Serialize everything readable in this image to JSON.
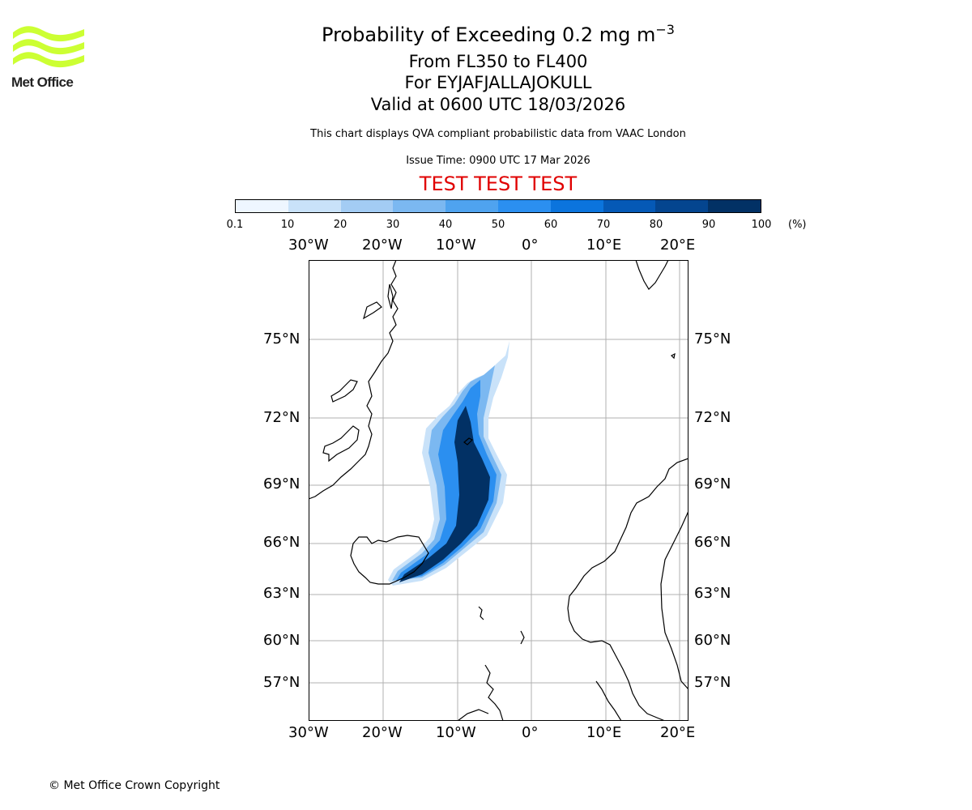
{
  "header": {
    "title": "Probability of Exceeding 0.2 mg m",
    "title_sup": "−3",
    "levels": "From FL350 to FL400",
    "volcano": "For EYJAFJALLAJOKULL",
    "valid": "Valid at 0600 UTC 18/03/2026",
    "description": "This chart displays QVA compliant probabilistic data from VAAC London",
    "issue_time": "Issue Time: 0900 UTC 17 Mar 2026",
    "test_banner": "TEST TEST TEST"
  },
  "logo": {
    "text": "Met Office",
    "color": "#ccff33"
  },
  "colorbar": {
    "labels": [
      "0.1",
      "10",
      "20",
      "30",
      "40",
      "50",
      "60",
      "70",
      "80",
      "90",
      "100"
    ],
    "unit": "(%)",
    "colors": [
      "#eef6ff",
      "#c9e2f9",
      "#a3ccf4",
      "#7bb8f1",
      "#4fa3ef",
      "#2b8ff0",
      "#0b74dd",
      "#0559b6",
      "#04458f",
      "#023165"
    ]
  },
  "map": {
    "lon_labels": [
      "30°W",
      "20°W",
      "10°W",
      "0°",
      "10°E",
      "20°E"
    ],
    "lat_labels": [
      "75°N",
      "72°N",
      "69°N",
      "66°N",
      "63°N",
      "60°N",
      "57°N"
    ],
    "gridlines": true,
    "coastline_color": "#000000"
  },
  "footer": {
    "copyright": "© Met Office Crown Copyright"
  }
}
